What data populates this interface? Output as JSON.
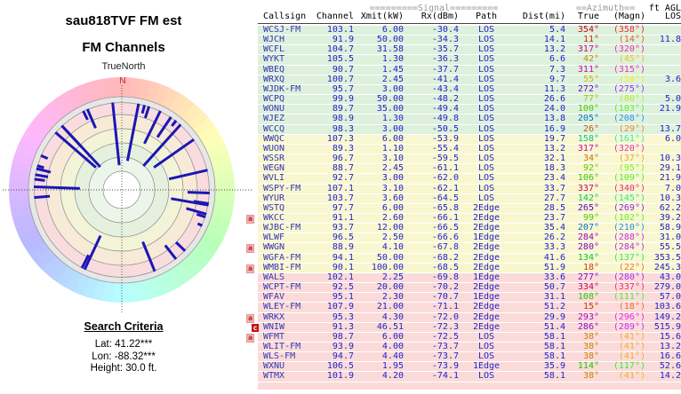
{
  "left_panel": {
    "title_line1": "sau818TVF FM est",
    "title_line2": "FM Channels",
    "north_label": "TrueNorth",
    "north_letter": "N",
    "search": {
      "heading": "Search Criteria",
      "lat": "Lat: 41.22***",
      "lon": "Lon: -88.32***",
      "height": "Height: 30.0 ft."
    }
  },
  "table": {
    "header": {
      "signal_group": "=========Signal=========",
      "azimuth_group": "==Azimuth==",
      "agl_group": "ft AGL",
      "columns": [
        "Callsign",
        "Channel",
        "Xmit(kW)",
        "Rx(dBm)",
        "Path",
        "Dist(mi)",
        "True",
        "(Magn)",
        "LOS"
      ]
    },
    "rows": [
      {
        "callsign": "WCSJ-FM",
        "channel": "103.1",
        "xmit": "6.00",
        "rx": "-30.4",
        "path": "LOS",
        "dist": "5.4",
        "az_true": 354,
        "az_magn": 358,
        "agl": "",
        "band": "green",
        "marker": ""
      },
      {
        "callsign": "WJCH",
        "channel": "91.9",
        "xmit": "50.00",
        "rx": "-34.3",
        "path": "LOS",
        "dist": "14.1",
        "az_true": 11,
        "az_magn": 14,
        "agl": "11.8",
        "band": "green",
        "marker": ""
      },
      {
        "callsign": "WCFL",
        "channel": "104.7",
        "xmit": "31.58",
        "rx": "-35.7",
        "path": "LOS",
        "dist": "13.2",
        "az_true": 317,
        "az_magn": 320,
        "agl": "",
        "band": "green",
        "marker": ""
      },
      {
        "callsign": "WYKT",
        "channel": "105.5",
        "xmit": "1.30",
        "rx": "-36.3",
        "path": "LOS",
        "dist": "6.6",
        "az_true": 42,
        "az_magn": 45,
        "agl": "",
        "band": "green",
        "marker": ""
      },
      {
        "callsign": "WBEQ",
        "channel": "90.7",
        "xmit": "1.45",
        "rx": "-37.7",
        "path": "LOS",
        "dist": "7.3",
        "az_true": 311,
        "az_magn": 315,
        "agl": "",
        "band": "green",
        "marker": ""
      },
      {
        "callsign": "WRXQ",
        "channel": "100.7",
        "xmit": "2.45",
        "rx": "-41.4",
        "path": "LOS",
        "dist": "9.7",
        "az_true": 55,
        "az_magn": 59,
        "agl": "3.6",
        "band": "green",
        "marker": ""
      },
      {
        "callsign": "WJDK-FM",
        "channel": "95.7",
        "xmit": "3.00",
        "rx": "-43.4",
        "path": "LOS",
        "dist": "11.3",
        "az_true": 272,
        "az_magn": 275,
        "agl": "",
        "band": "green",
        "marker": ""
      },
      {
        "callsign": "WCPQ",
        "channel": "99.9",
        "xmit": "50.00",
        "rx": "-48.2",
        "path": "LOS",
        "dist": "26.6",
        "az_true": 77,
        "az_magn": 80,
        "agl": "5.0",
        "band": "green",
        "marker": ""
      },
      {
        "callsign": "WONU",
        "channel": "89.7",
        "xmit": "35.00",
        "rx": "-49.4",
        "path": "LOS",
        "dist": "24.0",
        "az_true": 100,
        "az_magn": 103,
        "agl": "21.9",
        "band": "green",
        "marker": ""
      },
      {
        "callsign": "WJEZ",
        "channel": "98.9",
        "xmit": "1.30",
        "rx": "-49.8",
        "path": "LOS",
        "dist": "13.8",
        "az_true": 205,
        "az_magn": 208,
        "agl": "",
        "band": "green",
        "marker": ""
      },
      {
        "callsign": "WCCQ",
        "channel": "98.3",
        "xmit": "3.00",
        "rx": "-50.5",
        "path": "LOS",
        "dist": "16.9",
        "az_true": 26,
        "az_magn": 29,
        "agl": "13.7",
        "band": "green",
        "marker": ""
      },
      {
        "callsign": "WWQC",
        "channel": "107.3",
        "xmit": "6.00",
        "rx": "-53.9",
        "path": "LOS",
        "dist": "19.7",
        "az_true": 158,
        "az_magn": 161,
        "agl": "6.0",
        "band": "yellow",
        "marker": ""
      },
      {
        "callsign": "WUON",
        "channel": "89.3",
        "xmit": "1.10",
        "rx": "-55.4",
        "path": "LOS",
        "dist": "13.2",
        "az_true": 317,
        "az_magn": 320,
        "agl": "",
        "band": "yellow",
        "marker": ""
      },
      {
        "callsign": "WSSR",
        "channel": "96.7",
        "xmit": "3.10",
        "rx": "-59.5",
        "path": "LOS",
        "dist": "32.1",
        "az_true": 34,
        "az_magn": 37,
        "agl": "10.3",
        "band": "yellow",
        "marker": ""
      },
      {
        "callsign": "WEGN",
        "channel": "88.7",
        "xmit": "2.45",
        "rx": "-61.1",
        "path": "LOS",
        "dist": "18.3",
        "az_true": 92,
        "az_magn": 95,
        "agl": "29.1",
        "band": "yellow",
        "marker": ""
      },
      {
        "callsign": "WVLI",
        "channel": "92.7",
        "xmit": "3.00",
        "rx": "-62.0",
        "path": "LOS",
        "dist": "23.4",
        "az_true": 106,
        "az_magn": 109,
        "agl": "21.9",
        "band": "yellow",
        "marker": ""
      },
      {
        "callsign": "WSPY-FM",
        "channel": "107.1",
        "xmit": "3.10",
        "rx": "-62.1",
        "path": "LOS",
        "dist": "33.7",
        "az_true": 337,
        "az_magn": 340,
        "agl": "7.0",
        "band": "yellow",
        "marker": ""
      },
      {
        "callsign": "WYUR",
        "channel": "103.7",
        "xmit": "3.60",
        "rx": "-64.5",
        "path": "LOS",
        "dist": "27.7",
        "az_true": 142,
        "az_magn": 145,
        "agl": "10.3",
        "band": "yellow",
        "marker": ""
      },
      {
        "callsign": "WSTQ",
        "channel": "97.7",
        "xmit": "6.00",
        "rx": "-65.8",
        "path": "2Edge",
        "dist": "28.5",
        "az_true": 265,
        "az_magn": 269,
        "agl": "62.2",
        "band": "yellow",
        "marker": ""
      },
      {
        "callsign": "WKCC",
        "channel": "91.1",
        "xmit": "2.60",
        "rx": "-66.1",
        "path": "2Edge",
        "dist": "23.7",
        "az_true": 99,
        "az_magn": 102,
        "agl": "39.2",
        "band": "yellow",
        "marker": "a"
      },
      {
        "callsign": "WJBC-FM",
        "channel": "93.7",
        "xmit": "12.00",
        "rx": "-66.5",
        "path": "2Edge",
        "dist": "35.4",
        "az_true": 207,
        "az_magn": 210,
        "agl": "58.9",
        "band": "yellow",
        "marker": ""
      },
      {
        "callsign": "WLWF",
        "channel": "96.5",
        "xmit": "2.50",
        "rx": "-66.6",
        "path": "1Edge",
        "dist": "26.2",
        "az_true": 284,
        "az_magn": 288,
        "agl": "31.0",
        "band": "yellow",
        "marker": ""
      },
      {
        "callsign": "WWGN",
        "channel": "88.9",
        "xmit": "4.10",
        "rx": "-67.8",
        "path": "2Edge",
        "dist": "33.3",
        "az_true": 280,
        "az_magn": 284,
        "agl": "55.5",
        "band": "yellow",
        "marker": "a"
      },
      {
        "callsign": "WGFA-FM",
        "channel": "94.1",
        "xmit": "50.00",
        "rx": "-68.2",
        "path": "2Edge",
        "dist": "41.6",
        "az_true": 134,
        "az_magn": 137,
        "agl": "353.5",
        "band": "yellow",
        "marker": ""
      },
      {
        "callsign": "WMBI-FM",
        "channel": "90.1",
        "xmit": "100.00",
        "rx": "-68.5",
        "path": "2Edge",
        "dist": "51.9",
        "az_true": 18,
        "az_magn": 22,
        "agl": "245.3",
        "band": "yellow",
        "marker": "a"
      },
      {
        "callsign": "WALS",
        "channel": "102.1",
        "xmit": "2.25",
        "rx": "-69.8",
        "path": "1Edge",
        "dist": "33.6",
        "az_true": 277,
        "az_magn": 280,
        "agl": "43.0",
        "band": "pink",
        "marker": ""
      },
      {
        "callsign": "WCPT-FM",
        "channel": "92.5",
        "xmit": "20.00",
        "rx": "-70.2",
        "path": "2Edge",
        "dist": "50.7",
        "az_true": 334,
        "az_magn": 337,
        "agl": "279.0",
        "band": "pink",
        "marker": ""
      },
      {
        "callsign": "WFAV",
        "channel": "95.1",
        "xmit": "2.30",
        "rx": "-70.7",
        "path": "1Edge",
        "dist": "31.1",
        "az_true": 108,
        "az_magn": 111,
        "agl": "57.0",
        "band": "pink",
        "marker": ""
      },
      {
        "callsign": "WLEY-FM",
        "channel": "107.9",
        "xmit": "21.00",
        "rx": "-71.1",
        "path": "2Edge",
        "dist": "51.2",
        "az_true": 15,
        "az_magn": 18,
        "agl": "103.6",
        "band": "pink",
        "marker": ""
      },
      {
        "callsign": "WRKX",
        "channel": "95.3",
        "xmit": "4.30",
        "rx": "-72.0",
        "path": "2Edge",
        "dist": "29.9",
        "az_true": 293,
        "az_magn": 296,
        "agl": "149.2",
        "band": "pink",
        "marker": "a"
      },
      {
        "callsign": "WNIW",
        "channel": "91.3",
        "xmit": "46.51",
        "rx": "-72.3",
        "path": "2Edge",
        "dist": "51.4",
        "az_true": 286,
        "az_magn": 289,
        "agl": "515.9",
        "band": "pink",
        "marker": "c"
      },
      {
        "callsign": "WFMT",
        "channel": "98.7",
        "xmit": "6.00",
        "rx": "-72.5",
        "path": "LOS",
        "dist": "58.1",
        "az_true": 38,
        "az_magn": 41,
        "agl": "15.6",
        "band": "pink",
        "marker": "a"
      },
      {
        "callsign": "WLIT-FM",
        "channel": "93.9",
        "xmit": "4.00",
        "rx": "-73.7",
        "path": "LOS",
        "dist": "58.1",
        "az_true": 38,
        "az_magn": 41,
        "agl": "13.2",
        "band": "pink",
        "marker": ""
      },
      {
        "callsign": "WLS-FM",
        "channel": "94.7",
        "xmit": "4.40",
        "rx": "-73.7",
        "path": "LOS",
        "dist": "58.1",
        "az_true": 38,
        "az_magn": 41,
        "agl": "16.6",
        "band": "pink",
        "marker": ""
      },
      {
        "callsign": "WXNU",
        "channel": "106.5",
        "xmit": "1.95",
        "rx": "-73.9",
        "path": "1Edge",
        "dist": "35.9",
        "az_true": 114,
        "az_magn": 117,
        "agl": "52.6",
        "band": "pink",
        "marker": ""
      },
      {
        "callsign": "WTMX",
        "channel": "101.9",
        "xmit": "4.20",
        "rx": "-74.1",
        "path": "LOS",
        "dist": "58.1",
        "az_true": 38,
        "az_magn": 41,
        "agl": "14.2",
        "band": "pink",
        "marker": ""
      }
    ]
  },
  "chart_data": {
    "type": "bar",
    "coordinate_system": "polar",
    "title": "sau818TVF FM est FM Channels",
    "angle_axis": "Azimuth, degrees true (0 = TrueNorth, clockwise)",
    "value_axis": "Rx signal (dBm); longer bar toward center = stronger",
    "legend_position": "none",
    "grid": true,
    "stations": [
      "WCSJ-FM",
      "WJCH",
      "WCFL",
      "WYKT",
      "WBEQ",
      "WRXQ",
      "WJDK-FM",
      "WCPQ",
      "WONU",
      "WJEZ",
      "WCCQ",
      "WWQC",
      "WUON",
      "WSSR",
      "WEGN",
      "WVLI",
      "WSPY-FM",
      "WYUR",
      "WSTQ",
      "WKCC",
      "WJBC-FM",
      "WLWF",
      "WWGN",
      "WGFA-FM",
      "WMBI-FM",
      "WALS",
      "WCPT-FM",
      "WFAV",
      "WLEY-FM",
      "WRKX",
      "WNIW",
      "WFMT",
      "WLIT-FM",
      "WLS-FM",
      "WXNU",
      "WTMX"
    ],
    "azimuth_deg": [
      354,
      11,
      317,
      42,
      311,
      55,
      272,
      77,
      100,
      205,
      26,
      158,
      317,
      34,
      92,
      106,
      337,
      142,
      265,
      99,
      207,
      284,
      280,
      134,
      18,
      277,
      334,
      108,
      15,
      293,
      286,
      38,
      38,
      38,
      114,
      38
    ],
    "rx_dbm": [
      -30.4,
      -34.3,
      -35.7,
      -36.3,
      -37.7,
      -41.4,
      -43.4,
      -48.2,
      -49.4,
      -49.8,
      -50.5,
      -53.9,
      -55.4,
      -59.5,
      -61.1,
      -62.0,
      -62.1,
      -64.5,
      -65.8,
      -66.1,
      -66.5,
      -66.6,
      -67.8,
      -68.2,
      -68.5,
      -69.8,
      -70.2,
      -70.7,
      -71.1,
      -72.0,
      -72.3,
      -72.5,
      -73.7,
      -73.7,
      -73.9,
      -74.1
    ]
  }
}
